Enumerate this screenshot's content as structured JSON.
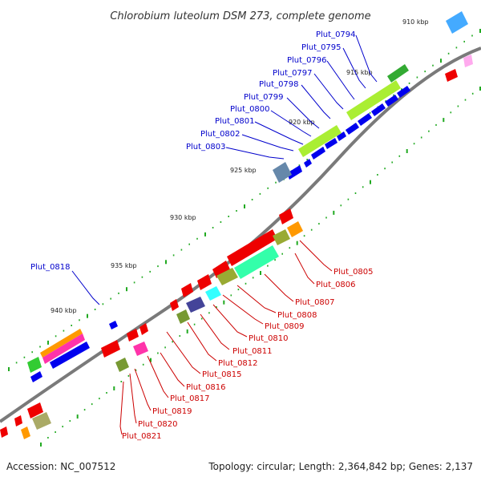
{
  "title": "Chlorobium luteolum DSM 273, complete genome",
  "footer": {
    "accession": "Accession: NC_007512",
    "summary": "Topology: circular; Length: 2,364,842 bp; Genes: 2,137"
  },
  "scale_labels": [
    "910 kbp",
    "915 kbp",
    "920 kbp",
    "925 kbp",
    "930 kbp",
    "935 kbp",
    "940 kbp"
  ],
  "plus_strand_labels": [
    "Plut_0794",
    "Plut_0795",
    "Plut_0796",
    "Plut_0797",
    "Plut_0798",
    "Plut_0799",
    "Plut_0800",
    "Plut_0801",
    "Plut_0802",
    "Plut_0803",
    "Plut_0818"
  ],
  "minus_strand_labels": [
    "Plut_0805",
    "Plut_0806",
    "Plut_0807",
    "Plut_0808",
    "Plut_0809",
    "Plut_0810",
    "Plut_0811",
    "Plut_0812",
    "Plut_0815",
    "Plut_0816",
    "Plut_0817",
    "Plut_0819",
    "Plut_0820",
    "Plut_0821"
  ],
  "colors": {
    "plus_gene": "#0000ee",
    "minus_gene": "#ee0000",
    "backbone": "#7a7a7a",
    "tick": "#22aa22",
    "cog_colors": [
      "#aaee33",
      "#33ffaa",
      "#ff9900",
      "#ff33aa",
      "#33cc33",
      "#44aaff",
      "#6688aa",
      "#8888cc",
      "#99aa33",
      "#33ffff",
      "#cc8899",
      "#ffaaee"
    ]
  }
}
